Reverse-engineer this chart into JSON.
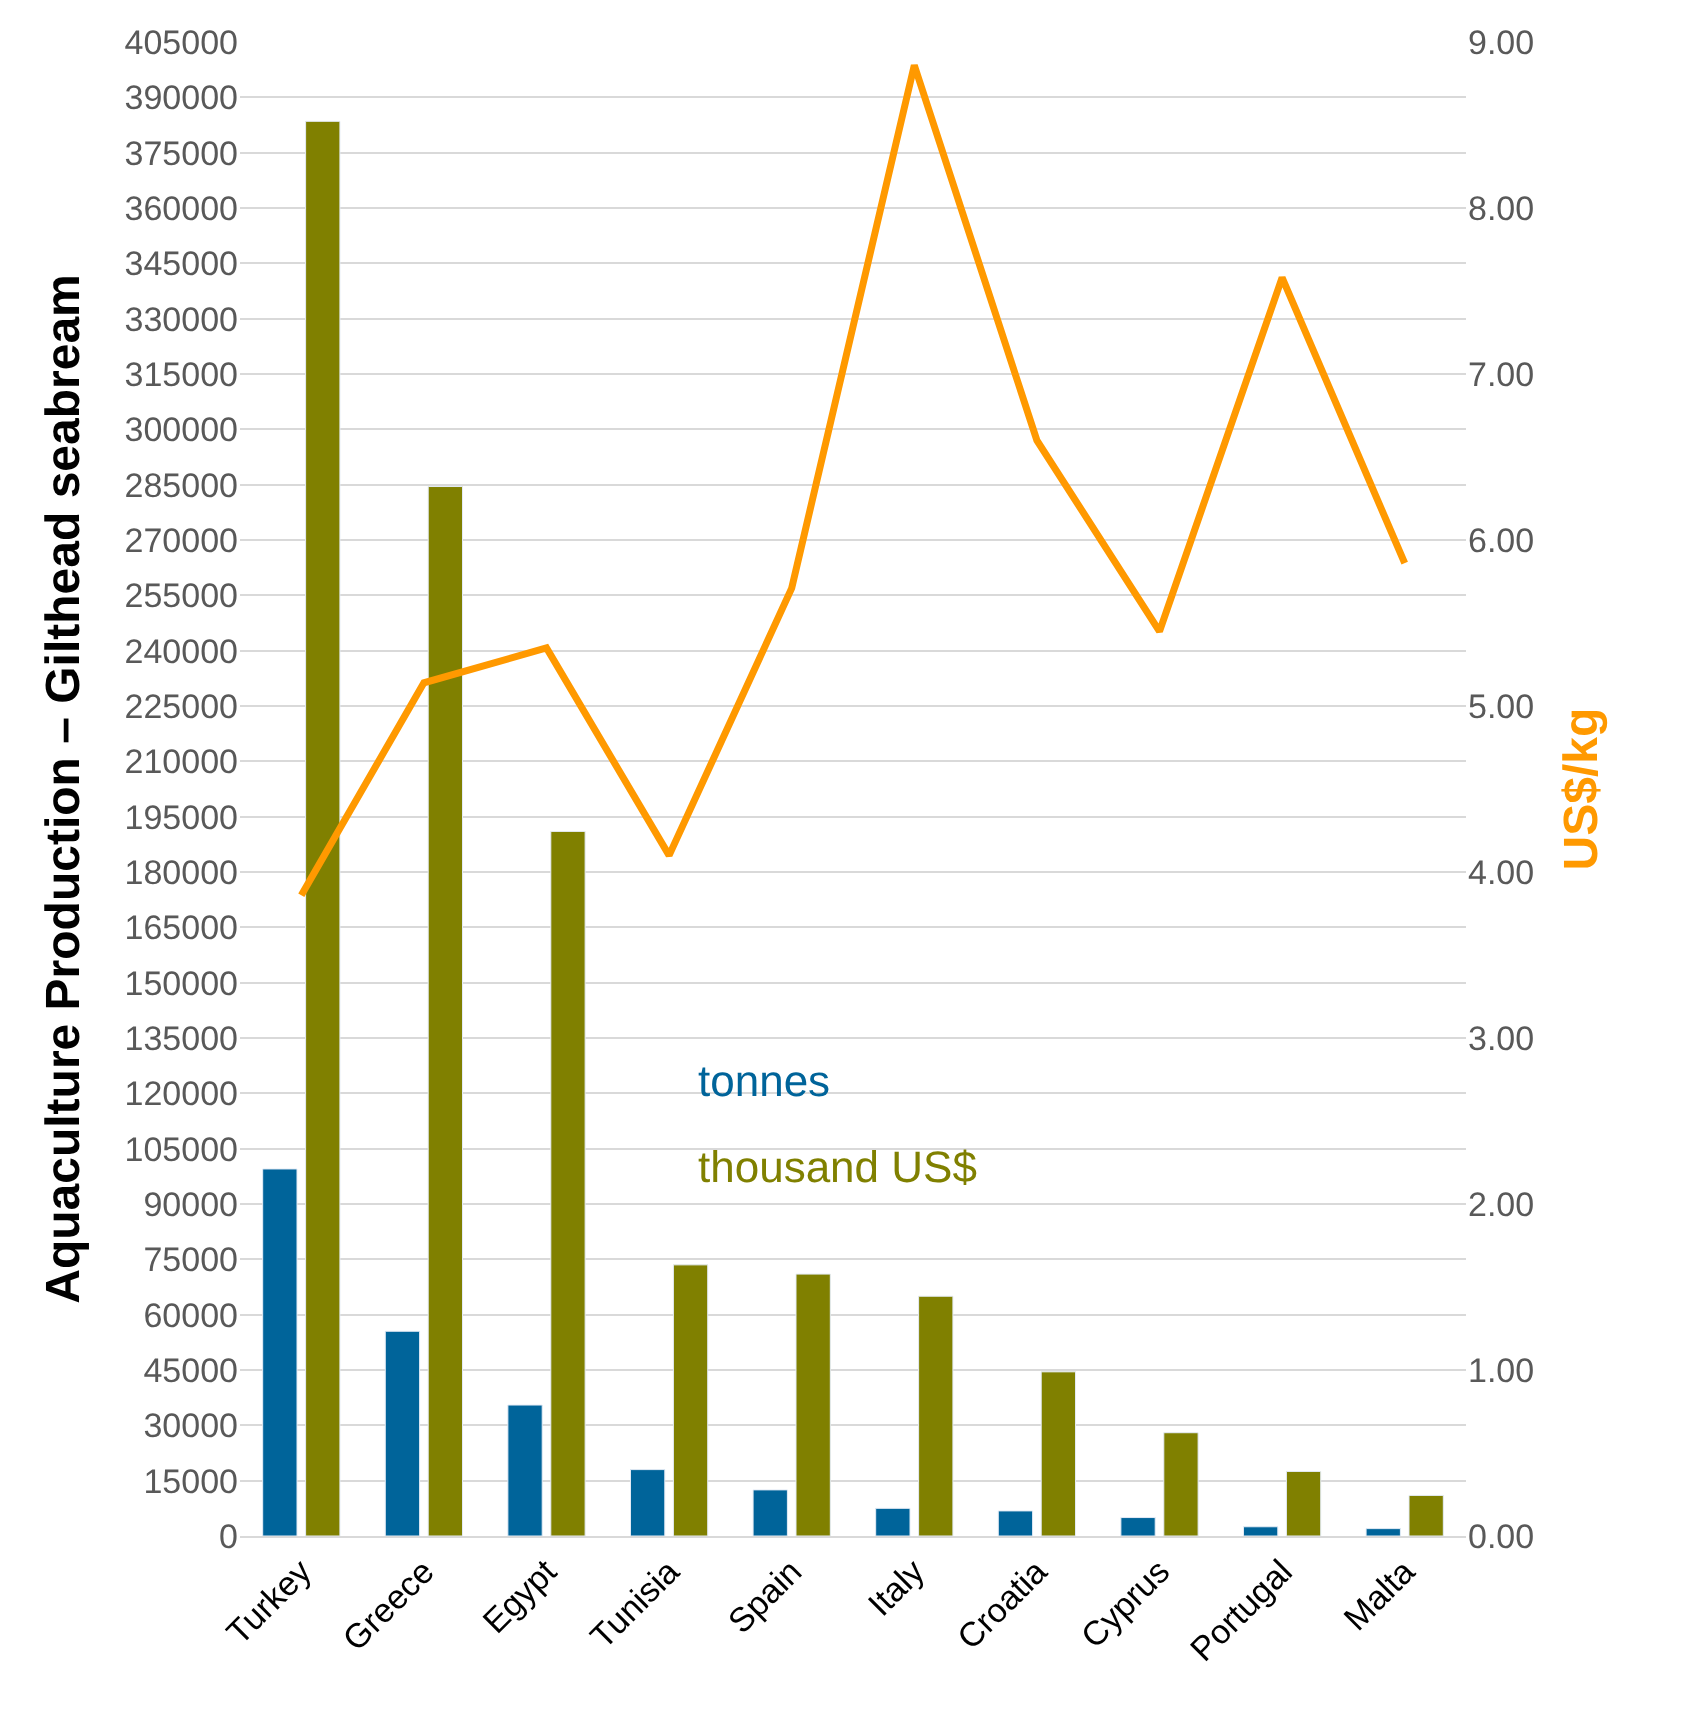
{
  "chart_data": {
    "type": "bar",
    "ylabel": "Aquaculture Production – Gilthead seabream",
    "y2label": "US$/kg",
    "categories": [
      "Turkey",
      "Greece",
      "Egypt",
      "Tunisia",
      "Spain",
      "Italy",
      "Croatia",
      "Cyprus",
      "Portugal",
      "Malta"
    ],
    "series": [
      {
        "name": "tonnes",
        "color": "#00649a",
        "values": [
          99500,
          55500,
          35500,
          18000,
          12500,
          7500,
          6800,
          5000,
          2500,
          2000
        ]
      },
      {
        "name": "thousand US$",
        "color": "#808000",
        "values": [
          383500,
          284500,
          191000,
          73500,
          71000,
          65000,
          44500,
          28000,
          17500,
          11000
        ]
      },
      {
        "type": "line",
        "axis": "y2",
        "color": "#ff9900",
        "values": [
          3.86,
          5.14,
          5.35,
          4.1,
          5.71,
          8.86,
          6.6,
          5.45,
          7.58,
          5.86
        ]
      }
    ],
    "ylim": [
      0,
      405000
    ],
    "yticks": [
      0,
      15000,
      30000,
      45000,
      60000,
      75000,
      90000,
      105000,
      120000,
      135000,
      150000,
      165000,
      180000,
      195000,
      210000,
      225000,
      240000,
      255000,
      270000,
      285000,
      300000,
      315000,
      330000,
      345000,
      360000,
      375000,
      390000,
      405000
    ],
    "y2lim": [
      0,
      9
    ],
    "y2ticks": [
      {
        "value": 0,
        "label": "0.00"
      },
      {
        "value": 1,
        "label": "1.00"
      },
      {
        "value": 2,
        "label": "2.00"
      },
      {
        "value": 3,
        "label": "3.00"
      },
      {
        "value": 4,
        "label": "4.00"
      },
      {
        "value": 5,
        "label": "5.00"
      },
      {
        "value": 6,
        "label": "6.00"
      },
      {
        "value": 7,
        "label": "7.00"
      },
      {
        "value": 8,
        "label": "8.00"
      },
      {
        "value": 9,
        "label": "9.00"
      }
    ],
    "grid": "y",
    "marker": "none",
    "line_style": "solid",
    "legend": false
  }
}
